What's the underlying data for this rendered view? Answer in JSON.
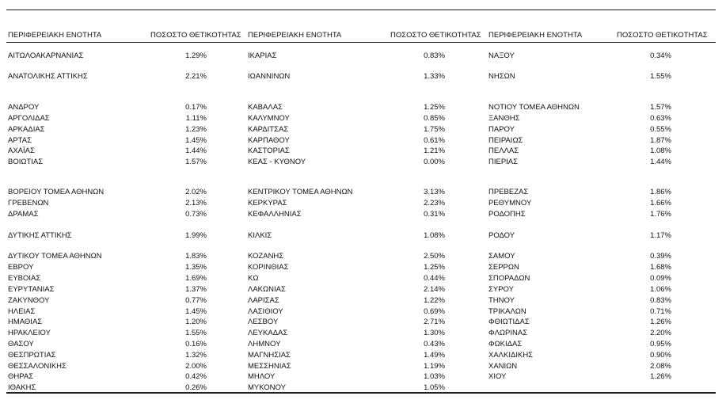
{
  "table": {
    "groups": [
      {
        "headers": [
          "ΠΕΡΙΦΕΡΕΙΑΚΗ ΕΝΟΤΗΤΑ",
          "ΠΟΣΟΣΤΟ ΘΕΤΙΚΟΤΗΤΑΣ"
        ],
        "rows": [
          [
            "ΑΙΤΩΛΟΑΚΑΡΝΑΝΙΑΣ",
            "1.29%"
          ],
          [
            "ΑΝΑΤΟΛΙΚΗΣ ΑΤΤΙΚΗΣ",
            "2.21%"
          ],
          [
            "ΑΝΔΡΟΥ",
            "0.17%"
          ],
          [
            "ΑΡΓΟΛΙΔΑΣ",
            "1.11%"
          ],
          [
            "ΑΡΚΑΔΙΑΣ",
            "1.23%"
          ],
          [
            "ΑΡΤΑΣ",
            "1.45%"
          ],
          [
            "ΑΧΑΪΑΣ",
            "1.44%"
          ],
          [
            "ΒΟΙΩΤΙΑΣ",
            "1.57%"
          ],
          [
            "ΒΟΡΕΙΟΥ ΤΟΜΕΑ ΑΘΗΝΩΝ",
            "2.02%"
          ],
          [
            "ΓΡΕΒΕΝΩΝ",
            "2.13%"
          ],
          [
            "ΔΡΑΜΑΣ",
            "0.73%"
          ],
          [
            "ΔΥΤΙΚΗΣ ΑΤΤΙΚΗΣ",
            "1.99%"
          ],
          [
            "ΔΥΤΙΚΟΥ ΤΟΜΕΑ ΑΘΗΝΩΝ",
            "1.83%"
          ],
          [
            "ΕΒΡΟΥ",
            "1.35%"
          ],
          [
            "ΕΥΒΟΙΑΣ",
            "1.69%"
          ],
          [
            "ΕΥΡΥΤΑΝΙΑΣ",
            "1.37%"
          ],
          [
            "ΖΑΚΥΝΘΟΥ",
            "0.77%"
          ],
          [
            "ΗΛΕΙΑΣ",
            "1.45%"
          ],
          [
            "ΗΜΑΘΙΑΣ",
            "1.20%"
          ],
          [
            "ΗΡΑΚΛΕΙΟΥ",
            "1.55%"
          ],
          [
            "ΘΑΣΟΥ",
            "0.16%"
          ],
          [
            "ΘΕΣΠΡΩΤΙΑΣ",
            "1.32%"
          ],
          [
            "ΘΕΣΣΑΛΟΝΙΚΗΣ",
            "2.00%"
          ],
          [
            "ΘΗΡΑΣ",
            "0.42%"
          ],
          [
            "ΙΘΑΚΗΣ",
            "0.26%"
          ]
        ]
      },
      {
        "headers": [
          "ΠΕΡΙΦΕΡΕΙΑΚΗ ΕΝΟΤΗΤΑ",
          "ΠΟΣΟΣΤΟ ΘΕΤΙΚΟΤΗΤΑΣ"
        ],
        "rows": [
          [
            "ΙΚΑΡΙΑΣ",
            "0.83%"
          ],
          [
            "ΙΩΑΝΝΙΝΩΝ",
            "1.33%"
          ],
          [
            "ΚΑΒΑΛΑΣ",
            "1.25%"
          ],
          [
            "ΚΑΛΥΜΝΟΥ",
            "0.85%"
          ],
          [
            "ΚΑΡΔΙΤΣΑΣ",
            "1.75%"
          ],
          [
            "ΚΑΡΠΑΘΟΥ",
            "0.61%"
          ],
          [
            "ΚΑΣΤΟΡΙΑΣ",
            "1.21%"
          ],
          [
            "ΚΕΑΣ - ΚΥΘΝΟΥ",
            "0.00%"
          ],
          [
            "ΚΕΝΤΡΙΚΟΥ ΤΟΜΕΑ ΑΘΗΝΩΝ",
            "3.13%"
          ],
          [
            "ΚΕΡΚΥΡΑΣ",
            "2.23%"
          ],
          [
            "ΚΕΦΑΛΛΗΝΙΑΣ",
            "0.31%"
          ],
          [
            "ΚΙΛΚΙΣ",
            "1.08%"
          ],
          [
            "ΚΟΖΑΝΗΣ",
            "2.50%"
          ],
          [
            "ΚΟΡΙΝΘΙΑΣ",
            "1.25%"
          ],
          [
            "ΚΩ",
            "0.44%"
          ],
          [
            "ΛΑΚΩΝΙΑΣ",
            "2.14%"
          ],
          [
            "ΛΑΡΙΣΑΣ",
            "1.22%"
          ],
          [
            "ΛΑΣΙΘΙΟΥ",
            "0.69%"
          ],
          [
            "ΛΕΣΒΟΥ",
            "2.71%"
          ],
          [
            "ΛΕΥΚΑΔΑΣ",
            "1.30%"
          ],
          [
            "ΛΗΜΝΟΥ",
            "0.43%"
          ],
          [
            "ΜΑΓΝΗΣΙΑΣ",
            "1.49%"
          ],
          [
            "ΜΕΣΣΗΝΙΑΣ",
            "1.19%"
          ],
          [
            "ΜΗΛΟΥ",
            "1.03%"
          ],
          [
            "ΜΥΚΟΝΟΥ",
            "1.05%"
          ]
        ]
      },
      {
        "headers": [
          "ΠΕΡΙΦΕΡΕΙΑΚΗ ΕΝΟΤΗΤΑ",
          "ΠΟΣΟΣΤΟ ΘΕΤΙΚΟΤΗΤΑΣ"
        ],
        "rows": [
          [
            "ΝΑΞΟΥ",
            "0.34%"
          ],
          [
            "ΝΗΣΩΝ",
            "1.55%"
          ],
          [
            "ΝΟΤΙΟΥ ΤΟΜΕΑ ΑΘΗΝΩΝ",
            "1.57%"
          ],
          [
            "ΞΑΝΘΗΣ",
            "0.63%"
          ],
          [
            "ΠΑΡΟΥ",
            "0.55%"
          ],
          [
            "ΠΕΙΡΑΙΩΣ",
            "1.87%"
          ],
          [
            "ΠΕΛΛΑΣ",
            "1.08%"
          ],
          [
            "ΠΙΕΡΙΑΣ",
            "1.44%"
          ],
          [
            "ΠΡΕΒΕΖΑΣ",
            "1.86%"
          ],
          [
            "ΡΕΘΥΜΝΟΥ",
            "1.66%"
          ],
          [
            "ΡΟΔΟΠΗΣ",
            "1.76%"
          ],
          [
            "ΡΟΔΟΥ",
            "1.17%"
          ],
          [
            "ΣΑΜΟΥ",
            "0.39%"
          ],
          [
            "ΣΕΡΡΩΝ",
            "1.68%"
          ],
          [
            "ΣΠΟΡΑΔΩΝ",
            "0.09%"
          ],
          [
            "ΣΥΡΟΥ",
            "1.06%"
          ],
          [
            "ΤΗΝΟΥ",
            "0.83%"
          ],
          [
            "ΤΡΙΚΑΛΩΝ",
            "0.71%"
          ],
          [
            "ΦΘΙΩΤΙΔΑΣ",
            "1.26%"
          ],
          [
            "ΦΛΩΡΙΝΑΣ",
            "2.20%"
          ],
          [
            "ΦΩΚΙΔΑΣ",
            "0.95%"
          ],
          [
            "ΧΑΛΚΙΔΙΚΗΣ",
            "0.90%"
          ],
          [
            "ΧΑΝΙΩΝ",
            "2.08%"
          ],
          [
            "ΧΙΟΥ",
            "1.26%"
          ]
        ]
      }
    ]
  }
}
